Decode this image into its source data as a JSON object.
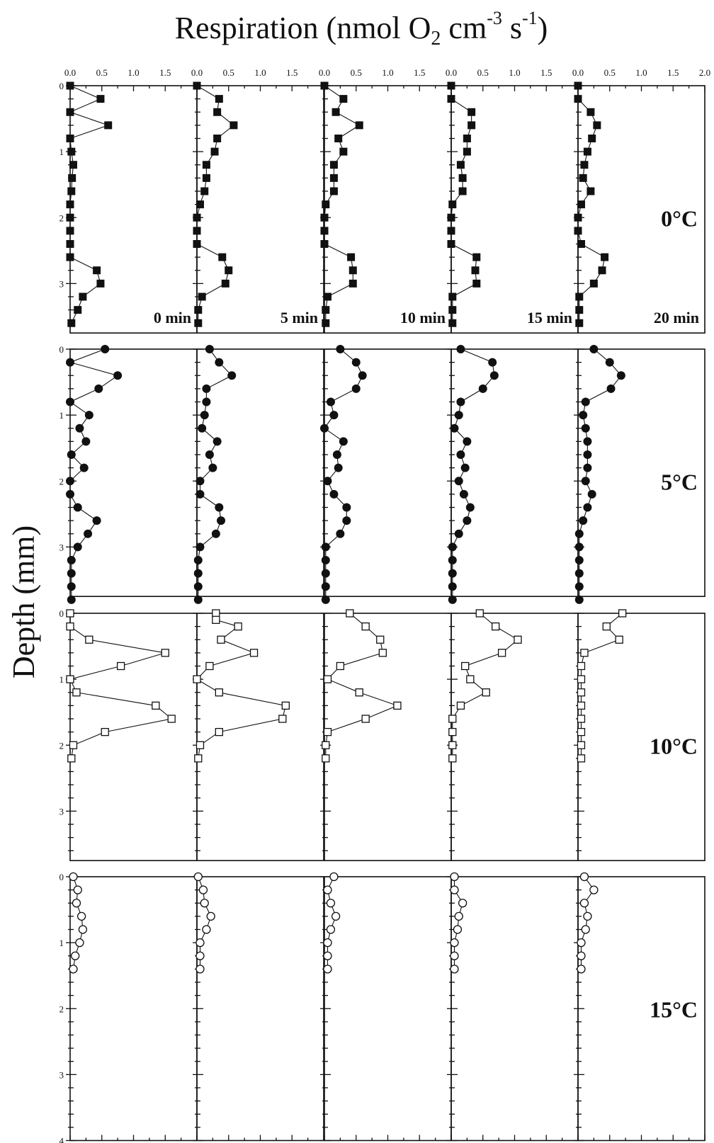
{
  "chart_data": {
    "type": "scatter",
    "title": "",
    "xlabel_main": "Respiration (nmol O",
    "xlabel_sub": "2",
    "xlabel_mid": " cm",
    "xlabel_sup1": "-3",
    "xlabel_mid2": " s",
    "xlabel_sup2": "-1",
    "xlabel_end": ")",
    "ylabel": "Depth (mm)",
    "xlim": [
      0,
      2.0
    ],
    "ylim": [
      0,
      4
    ],
    "x_tick_labels": [
      [
        "0.0",
        "0.5",
        "1.0",
        "1.5"
      ],
      [
        "0.0",
        "0.5",
        "1.0",
        "1.5"
      ],
      [
        "0.0",
        "0.5",
        "1.0",
        "1.5"
      ],
      [
        "0.0",
        "0.5",
        "1.0",
        "1.5"
      ],
      [
        "0.0",
        "0.5",
        "1.0",
        "1.5",
        "2.0"
      ]
    ],
    "y_tick_labels_by_row": [
      [
        "0",
        "1",
        "2",
        "3"
      ],
      [
        "0",
        "1",
        "2",
        "3"
      ],
      [
        "0",
        "1",
        "2",
        "3"
      ],
      [
        "0",
        "1",
        "2",
        "3",
        "4"
      ]
    ],
    "time_labels": [
      "0 min",
      "5 min",
      "10 min",
      "15 min",
      "20 min"
    ],
    "temperatures": [
      {
        "label": "0°C",
        "marker": "filled-square",
        "panels": [
          {
            "time": "0 min",
            "depth": [
              0.0,
              0.2,
              0.4,
              0.6,
              0.8,
              1.0,
              1.2,
              1.4,
              1.6,
              1.8,
              2.0,
              2.2,
              2.4,
              2.6,
              2.8,
              3.0,
              3.2,
              3.4,
              3.6
            ],
            "resp": [
              0.0,
              0.48,
              0.0,
              0.6,
              0.0,
              0.02,
              0.05,
              0.03,
              0.02,
              0.0,
              0.0,
              0.0,
              0.0,
              0.0,
              0.42,
              0.48,
              0.2,
              0.12,
              0.02
            ]
          },
          {
            "time": "5 min",
            "depth": [
              0.0,
              0.2,
              0.4,
              0.6,
              0.8,
              1.0,
              1.2,
              1.4,
              1.6,
              1.8,
              2.0,
              2.2,
              2.4,
              2.6,
              2.8,
              3.0,
              3.2,
              3.4,
              3.6
            ],
            "resp": [
              0.0,
              0.35,
              0.32,
              0.58,
              0.32,
              0.28,
              0.15,
              0.15,
              0.12,
              0.05,
              0.0,
              0.0,
              0.0,
              0.4,
              0.5,
              0.45,
              0.08,
              0.02,
              0.02
            ]
          },
          {
            "time": "10 min",
            "depth": [
              0.0,
              0.2,
              0.4,
              0.6,
              0.8,
              1.0,
              1.2,
              1.4,
              1.6,
              1.8,
              2.0,
              2.2,
              2.4,
              2.6,
              2.8,
              3.0,
              3.2,
              3.4,
              3.6
            ],
            "resp": [
              0.0,
              0.3,
              0.18,
              0.55,
              0.22,
              0.3,
              0.15,
              0.15,
              0.15,
              0.02,
              0.0,
              0.0,
              0.0,
              0.42,
              0.45,
              0.45,
              0.05,
              0.02,
              0.02
            ]
          },
          {
            "time": "15 min",
            "depth": [
              0.0,
              0.2,
              0.4,
              0.6,
              0.8,
              1.0,
              1.2,
              1.4,
              1.6,
              1.8,
              2.0,
              2.2,
              2.4,
              2.6,
              2.8,
              3.0,
              3.2,
              3.4,
              3.6
            ],
            "resp": [
              0.0,
              0.0,
              0.32,
              0.32,
              0.25,
              0.25,
              0.15,
              0.18,
              0.18,
              0.02,
              0.0,
              0.0,
              0.0,
              0.4,
              0.38,
              0.4,
              0.02,
              0.02,
              0.02
            ]
          },
          {
            "time": "20 min",
            "depth": [
              0.0,
              0.2,
              0.4,
              0.6,
              0.8,
              1.0,
              1.2,
              1.4,
              1.6,
              1.8,
              2.0,
              2.2,
              2.4,
              2.6,
              2.8,
              3.0,
              3.2,
              3.4,
              3.6
            ],
            "resp": [
              0.0,
              0.0,
              0.2,
              0.3,
              0.22,
              0.15,
              0.1,
              0.08,
              0.2,
              0.05,
              0.0,
              0.0,
              0.05,
              0.42,
              0.38,
              0.25,
              0.02,
              0.02,
              0.02
            ]
          }
        ]
      },
      {
        "label": "5°C",
        "marker": "filled-circle",
        "panels": [
          {
            "time": "0 min",
            "depth": [
              0.0,
              0.2,
              0.4,
              0.6,
              0.8,
              1.0,
              1.2,
              1.4,
              1.6,
              1.8,
              2.0,
              2.2,
              2.4,
              2.6,
              2.8,
              3.0,
              3.2,
              3.4,
              3.6,
              3.8
            ],
            "resp": [
              0.55,
              0.0,
              0.75,
              0.45,
              0.0,
              0.3,
              0.15,
              0.25,
              0.02,
              0.22,
              0.0,
              0.0,
              0.12,
              0.42,
              0.28,
              0.12,
              0.02,
              0.02,
              0.02,
              0.02
            ]
          },
          {
            "time": "5 min",
            "depth": [
              0.0,
              0.2,
              0.4,
              0.6,
              0.8,
              1.0,
              1.2,
              1.4,
              1.6,
              1.8,
              2.0,
              2.2,
              2.4,
              2.6,
              2.8,
              3.0,
              3.2,
              3.4,
              3.6,
              3.8
            ],
            "resp": [
              0.2,
              0.35,
              0.55,
              0.15,
              0.15,
              0.12,
              0.08,
              0.32,
              0.2,
              0.25,
              0.05,
              0.05,
              0.35,
              0.38,
              0.3,
              0.05,
              0.02,
              0.02,
              0.02,
              0.02
            ]
          },
          {
            "time": "10 min",
            "depth": [
              0.0,
              0.2,
              0.4,
              0.6,
              0.8,
              1.0,
              1.2,
              1.4,
              1.6,
              1.8,
              2.0,
              2.2,
              2.4,
              2.6,
              2.8,
              3.0,
              3.2,
              3.4,
              3.6,
              3.8
            ],
            "resp": [
              0.25,
              0.5,
              0.6,
              0.5,
              0.1,
              0.15,
              0.0,
              0.3,
              0.2,
              0.22,
              0.05,
              0.15,
              0.35,
              0.35,
              0.25,
              0.02,
              0.02,
              0.02,
              0.02,
              0.02
            ]
          },
          {
            "time": "15 min",
            "depth": [
              0.0,
              0.2,
              0.4,
              0.6,
              0.8,
              1.0,
              1.2,
              1.4,
              1.6,
              1.8,
              2.0,
              2.2,
              2.4,
              2.6,
              2.8,
              3.0,
              3.2,
              3.4,
              3.6,
              3.8
            ],
            "resp": [
              0.15,
              0.65,
              0.68,
              0.5,
              0.15,
              0.12,
              0.05,
              0.25,
              0.15,
              0.22,
              0.12,
              0.2,
              0.3,
              0.25,
              0.12,
              0.02,
              0.02,
              0.02,
              0.02,
              0.02
            ]
          },
          {
            "time": "20 min",
            "depth": [
              0.0,
              0.2,
              0.4,
              0.6,
              0.8,
              1.0,
              1.2,
              1.4,
              1.6,
              1.8,
              2.0,
              2.2,
              2.4,
              2.6,
              2.8,
              3.0,
              3.2,
              3.4,
              3.6,
              3.8
            ],
            "resp": [
              0.25,
              0.5,
              0.68,
              0.52,
              0.12,
              0.08,
              0.12,
              0.15,
              0.15,
              0.15,
              0.12,
              0.22,
              0.15,
              0.08,
              0.02,
              0.02,
              0.02,
              0.02,
              0.02,
              0.02
            ]
          }
        ]
      },
      {
        "label": "10°C",
        "marker": "open-square",
        "panels": [
          {
            "time": "0 min",
            "depth": [
              0.0,
              0.2,
              0.4,
              0.6,
              0.8,
              1.0,
              1.2,
              1.4,
              1.6,
              1.8,
              2.0,
              2.2
            ],
            "resp": [
              0.0,
              0.0,
              0.3,
              1.5,
              0.8,
              0.0,
              0.1,
              1.35,
              1.6,
              0.55,
              0.05,
              0.02
            ]
          },
          {
            "time": "5 min",
            "depth": [
              0.0,
              0.1,
              0.2,
              0.4,
              0.6,
              0.8,
              1.0,
              1.2,
              1.4,
              1.6,
              1.8,
              2.0,
              2.2
            ],
            "resp": [
              0.3,
              0.3,
              0.65,
              0.38,
              0.9,
              0.2,
              0.0,
              0.35,
              1.4,
              1.35,
              0.35,
              0.05,
              0.02
            ]
          },
          {
            "time": "10 min",
            "depth": [
              0.0,
              0.2,
              0.4,
              0.6,
              0.8,
              1.0,
              1.2,
              1.4,
              1.6,
              1.8,
              2.0,
              2.2
            ],
            "resp": [
              0.4,
              0.65,
              0.88,
              0.92,
              0.25,
              0.05,
              0.55,
              1.15,
              0.65,
              0.05,
              0.02,
              0.02
            ]
          },
          {
            "time": "15 min",
            "depth": [
              0.0,
              0.2,
              0.4,
              0.6,
              0.8,
              1.0,
              1.2,
              1.4,
              1.6,
              1.8,
              2.0,
              2.2
            ],
            "resp": [
              0.45,
              0.7,
              1.05,
              0.8,
              0.22,
              0.3,
              0.55,
              0.15,
              0.02,
              0.02,
              0.02,
              0.02
            ]
          },
          {
            "time": "20 min",
            "depth": [
              0.0,
              0.2,
              0.4,
              0.6,
              0.8,
              1.0,
              1.2,
              1.4,
              1.6,
              1.8,
              2.0,
              2.2
            ],
            "resp": [
              0.7,
              0.45,
              0.65,
              0.1,
              0.05,
              0.05,
              0.05,
              0.05,
              0.05,
              0.05,
              0.05,
              0.05
            ]
          }
        ]
      },
      {
        "label": "15°C",
        "marker": "open-circle",
        "panels": [
          {
            "time": "0 min",
            "depth": [
              0.0,
              0.2,
              0.4,
              0.6,
              0.8,
              1.0,
              1.2,
              1.4
            ],
            "resp": [
              0.05,
              0.12,
              0.1,
              0.18,
              0.2,
              0.15,
              0.08,
              0.05
            ]
          },
          {
            "time": "5 min",
            "depth": [
              0.0,
              0.2,
              0.4,
              0.6,
              0.8,
              1.0,
              1.2,
              1.4
            ],
            "resp": [
              0.02,
              0.1,
              0.12,
              0.22,
              0.15,
              0.05,
              0.05,
              0.05
            ]
          },
          {
            "time": "10 min",
            "depth": [
              0.0,
              0.2,
              0.4,
              0.6,
              0.8,
              1.0,
              1.2,
              1.4
            ],
            "resp": [
              0.15,
              0.05,
              0.1,
              0.18,
              0.1,
              0.05,
              0.05,
              0.05
            ]
          },
          {
            "time": "15 min",
            "depth": [
              0.0,
              0.2,
              0.4,
              0.6,
              0.8,
              1.0,
              1.2,
              1.4
            ],
            "resp": [
              0.05,
              0.05,
              0.18,
              0.12,
              0.1,
              0.05,
              0.05,
              0.05
            ]
          },
          {
            "time": "20 min",
            "depth": [
              0.0,
              0.2,
              0.4,
              0.6,
              0.8,
              1.0,
              1.2,
              1.4
            ],
            "resp": [
              0.1,
              0.25,
              0.1,
              0.15,
              0.12,
              0.05,
              0.05,
              0.05
            ]
          }
        ]
      }
    ],
    "grid": false,
    "legend": "none",
    "colors": {
      "ink": "#111111",
      "background": "#ffffff"
    }
  }
}
